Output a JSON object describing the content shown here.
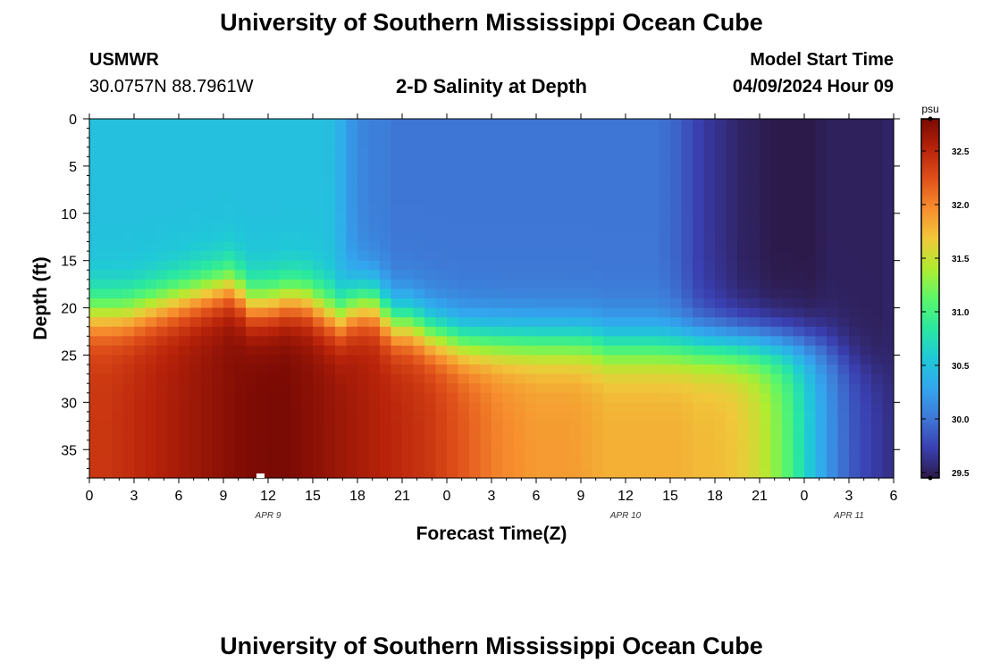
{
  "page": {
    "title": "University of Southern Mississippi Ocean Cube",
    "footer_title": "University of Southern Mississippi Ocean Cube",
    "station": "USMWR",
    "coordinates": "30.0757N  88.7961W",
    "chart_title": "2-D Salinity at Depth",
    "model_start_label": "Model Start Time",
    "model_start_value": "04/09/2024 Hour 09"
  },
  "chart_data": {
    "type": "heatmap",
    "title": "2-D Salinity at Depth",
    "xlabel": "Forecast Time(Z)",
    "ylabel": "Depth (ft)",
    "x_ticks": [
      "0",
      "3",
      "6",
      "9",
      "12",
      "15",
      "18",
      "21",
      "0",
      "3",
      "6",
      "9",
      "12",
      "15",
      "18",
      "21",
      "0",
      "3",
      "6"
    ],
    "date_labels": [
      {
        "label": "APR 9",
        "at_tick": 4
      },
      {
        "label": "APR 10",
        "at_tick": 12
      },
      {
        "label": "APR 11",
        "at_tick": 17
      }
    ],
    "y_ticks": [
      0,
      5,
      10,
      15,
      20,
      25,
      30,
      35
    ],
    "y_range": [
      0,
      38
    ],
    "x_range_hours": [
      0,
      54
    ],
    "colorbar": {
      "unit": "psu",
      "min": 29.45,
      "max": 32.8,
      "ticks": [
        "29.5",
        "30.0",
        "30.5",
        "31.0",
        "31.5",
        "32.0",
        "32.5"
      ]
    },
    "colormap": [
      "#2c1a4a",
      "#3a3fb0",
      "#3e78d6",
      "#33a6ef",
      "#20c8d8",
      "#2ae8a0",
      "#5cf66a",
      "#b0ec30",
      "#f0c83a",
      "#f78e2e",
      "#e0501a",
      "#b8230a",
      "#7a0a04"
    ],
    "fields": {
      "mixed_layer_depth_ft": [
        18,
        18,
        18,
        17.5,
        17,
        16.5,
        16,
        15.5,
        15,
        17,
        17,
        16.5,
        16.5,
        17.5,
        18.5,
        17,
        17,
        19,
        19,
        20,
        20.5,
        21,
        21,
        21,
        21,
        21,
        21,
        21,
        21,
        21.5,
        21.5,
        21.5,
        21.5,
        21.5,
        21.5,
        21.5,
        21.5,
        21.5,
        21.5,
        21.5,
        21.5,
        21.5,
        22,
        23,
        24,
        25
      ],
      "surface_salinity_psu": [
        30.5,
        30.5,
        30.5,
        30.5,
        30.5,
        30.5,
        30.5,
        30.5,
        30.5,
        30.5,
        30.5,
        30.5,
        30.5,
        30.5,
        30.5,
        30.5,
        30.5,
        30.5,
        30.5,
        30.5,
        30.5,
        30.5,
        30.4,
        30.2,
        30.1,
        30.05,
        30.05,
        30.0,
        30.0,
        30.0,
        30.0,
        30.0,
        30.0,
        30.0,
        30.0,
        30.0,
        30.0,
        30.0,
        30.0,
        30.0,
        30.0,
        30.0,
        30.0,
        30.0,
        30.0,
        30.0,
        30.0,
        30.0,
        30.0,
        30.0,
        30.0,
        29.95,
        29.9,
        29.8,
        29.7,
        29.65,
        29.6,
        29.55,
        29.5,
        29.5,
        29.45,
        29.45,
        29.45,
        29.45,
        29.45,
        29.5,
        29.5,
        29.5,
        29.5,
        29.5,
        29.5,
        29.55
      ],
      "bottom_salinity_psu": [
        32.4,
        32.4,
        32.45,
        32.5,
        32.55,
        32.6,
        32.65,
        32.7,
        32.75,
        32.78,
        32.8,
        32.8,
        32.75,
        32.7,
        32.65,
        32.6,
        32.55,
        32.5,
        32.45,
        32.4,
        32.3,
        32.2,
        32.1,
        32.0,
        31.95,
        31.9,
        31.9,
        31.9,
        31.85,
        31.8,
        31.8,
        31.8,
        31.8,
        31.8,
        31.75,
        31.75,
        31.7,
        31.6,
        31.4,
        31.1,
        30.7,
        30.3,
        30.0,
        29.8,
        29.7,
        29.6
      ]
    }
  }
}
